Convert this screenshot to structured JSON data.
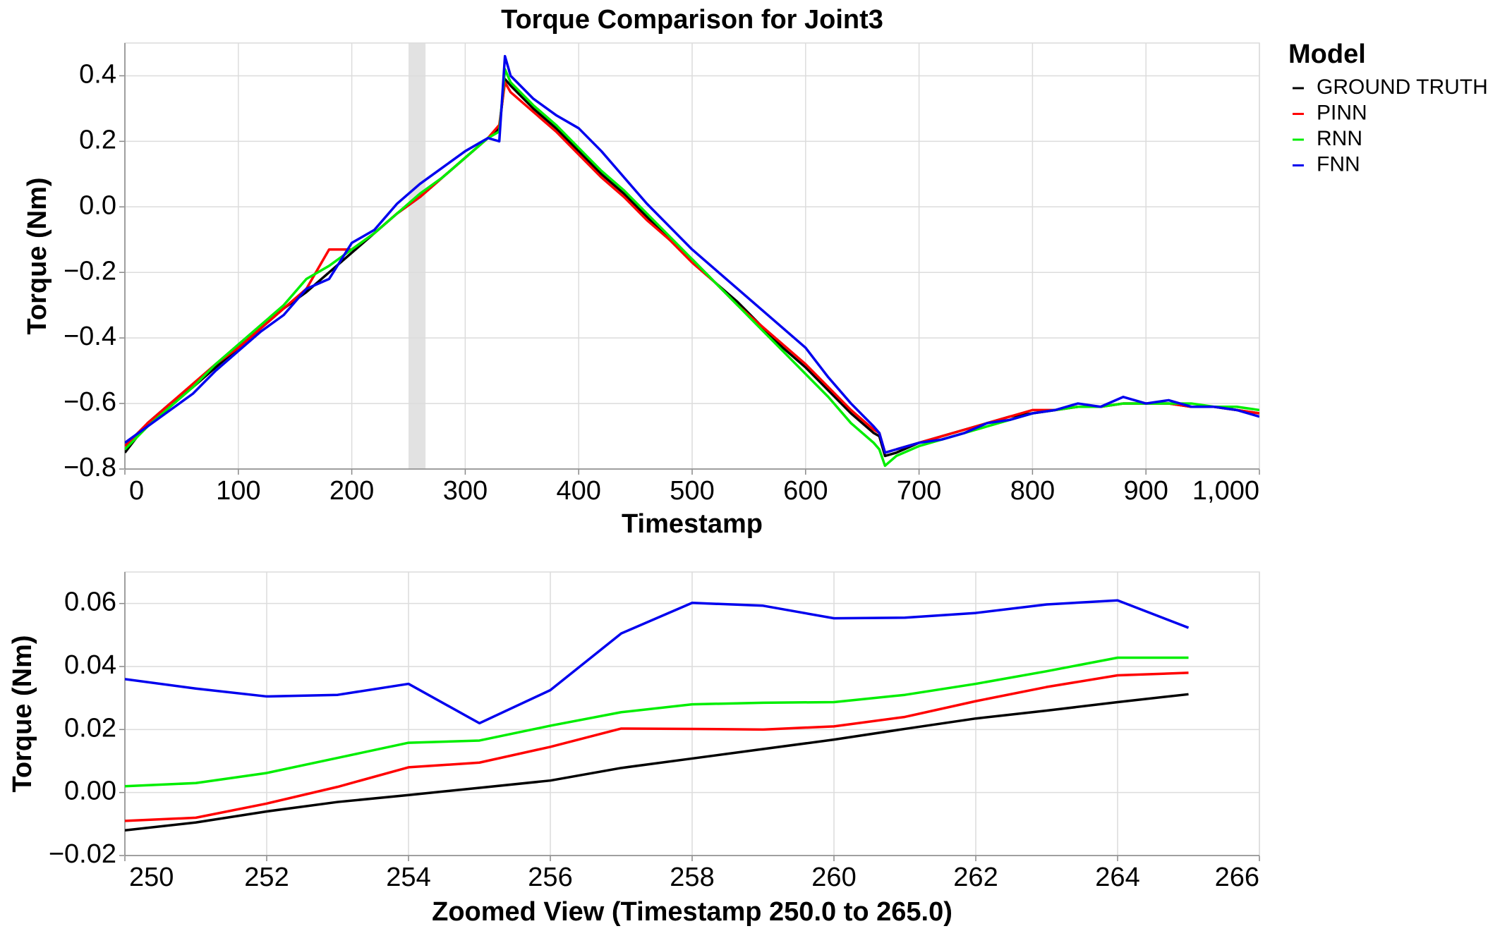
{
  "chart_data": [
    {
      "type": "line",
      "title": "Torque Comparison for Joint3",
      "xlabel": "Timestamp",
      "ylabel": "Torque (Nm)",
      "legend_title": "Model",
      "legend": "right",
      "grid": true,
      "highlight_range": [
        250,
        265
      ],
      "x": [
        0,
        20,
        40,
        60,
        80,
        100,
        120,
        140,
        160,
        180,
        200,
        220,
        240,
        260,
        280,
        300,
        320,
        330,
        335,
        340,
        360,
        380,
        400,
        420,
        440,
        460,
        480,
        500,
        520,
        540,
        560,
        580,
        600,
        620,
        640,
        660,
        665,
        670,
        680,
        700,
        720,
        740,
        760,
        780,
        800,
        820,
        840,
        860,
        880,
        900,
        920,
        940,
        960,
        980,
        1000
      ],
      "series": [
        {
          "name": "GROUND TRUTH",
          "color": "#000000",
          "values": [
            -0.75,
            -0.66,
            -0.6,
            -0.55,
            -0.49,
            -0.43,
            -0.37,
            -0.31,
            -0.26,
            -0.2,
            -0.14,
            -0.08,
            -0.02,
            0.03,
            0.09,
            0.15,
            0.21,
            0.24,
            0.39,
            0.37,
            0.3,
            0.24,
            0.17,
            0.1,
            0.04,
            -0.03,
            -0.1,
            -0.16,
            -0.23,
            -0.29,
            -0.36,
            -0.43,
            -0.49,
            -0.56,
            -0.63,
            -0.69,
            -0.7,
            -0.76,
            -0.75,
            -0.72,
            -0.7,
            -0.68,
            -0.66,
            -0.64,
            -0.63,
            -0.62,
            -0.61,
            -0.61,
            -0.6,
            -0.6,
            -0.6,
            -0.61,
            -0.61,
            -0.62,
            -0.63
          ]
        },
        {
          "name": "PINN",
          "color": "#ff0000",
          "values": [
            -0.73,
            -0.66,
            -0.6,
            -0.54,
            -0.48,
            -0.43,
            -0.37,
            -0.31,
            -0.25,
            -0.13,
            -0.13,
            -0.08,
            -0.02,
            0.03,
            0.09,
            0.15,
            0.21,
            0.25,
            0.38,
            0.35,
            0.29,
            0.23,
            0.16,
            0.09,
            0.03,
            -0.04,
            -0.1,
            -0.17,
            -0.23,
            -0.3,
            -0.36,
            -0.42,
            -0.48,
            -0.55,
            -0.62,
            -0.68,
            -0.69,
            -0.75,
            -0.74,
            -0.72,
            -0.7,
            -0.68,
            -0.66,
            -0.64,
            -0.62,
            -0.62,
            -0.61,
            -0.61,
            -0.6,
            -0.6,
            -0.6,
            -0.61,
            -0.61,
            -0.62,
            -0.63
          ]
        },
        {
          "name": "RNN",
          "color": "#00ee00",
          "values": [
            -0.74,
            -0.67,
            -0.61,
            -0.55,
            -0.48,
            -0.42,
            -0.36,
            -0.3,
            -0.22,
            -0.18,
            -0.13,
            -0.08,
            -0.02,
            0.04,
            0.09,
            0.15,
            0.21,
            0.23,
            0.42,
            0.38,
            0.31,
            0.25,
            0.18,
            0.11,
            0.05,
            -0.02,
            -0.09,
            -0.16,
            -0.23,
            -0.3,
            -0.37,
            -0.44,
            -0.51,
            -0.58,
            -0.66,
            -0.72,
            -0.74,
            -0.79,
            -0.76,
            -0.73,
            -0.71,
            -0.69,
            -0.67,
            -0.65,
            -0.63,
            -0.62,
            -0.61,
            -0.61,
            -0.6,
            -0.6,
            -0.6,
            -0.6,
            -0.61,
            -0.61,
            -0.62
          ]
        },
        {
          "name": "FNN",
          "color": "#0000ee",
          "values": [
            -0.72,
            -0.67,
            -0.62,
            -0.57,
            -0.5,
            -0.44,
            -0.38,
            -0.33,
            -0.25,
            -0.22,
            -0.11,
            -0.07,
            0.01,
            0.07,
            0.12,
            0.17,
            0.21,
            0.2,
            0.46,
            0.4,
            0.33,
            0.28,
            0.24,
            0.17,
            0.09,
            0.01,
            -0.06,
            -0.13,
            -0.19,
            -0.25,
            -0.31,
            -0.37,
            -0.43,
            -0.52,
            -0.6,
            -0.67,
            -0.69,
            -0.75,
            -0.74,
            -0.72,
            -0.71,
            -0.69,
            -0.66,
            -0.65,
            -0.63,
            -0.62,
            -0.6,
            -0.61,
            -0.58,
            -0.6,
            -0.59,
            -0.61,
            -0.61,
            -0.62,
            -0.64
          ]
        }
      ],
      "xlim": [
        0,
        1000
      ],
      "xticks": [
        0,
        100,
        200,
        300,
        400,
        500,
        600,
        700,
        800,
        900,
        {
          "value": 1000,
          "label": "1,000"
        }
      ],
      "ylim": [
        -0.8,
        0.5
      ],
      "yticks": [
        {
          "value": -0.8,
          "label": "−0.8"
        },
        {
          "value": -0.6,
          "label": "−0.6"
        },
        {
          "value": -0.4,
          "label": "−0.4"
        },
        {
          "value": -0.2,
          "label": "−0.2"
        },
        {
          "value": 0,
          "label": "0.0"
        },
        0.2,
        0.4
      ]
    },
    {
      "type": "line",
      "xlabel": "Zoomed View (Timestamp 250.0 to 265.0)",
      "ylabel": "Torque (Nm)",
      "grid": true,
      "x": [
        250,
        251,
        252,
        253,
        254,
        255,
        256,
        257,
        258,
        259,
        260,
        261,
        262,
        263,
        264,
        265
      ],
      "series": [
        {
          "name": "GROUND TRUTH",
          "color": "#000000",
          "values": [
            -0.012,
            -0.0095,
            -0.006,
            -0.003,
            -0.0008,
            0.0015,
            0.0038,
            0.0078,
            0.0108,
            0.0138,
            0.0168,
            0.0202,
            0.0235,
            0.026,
            0.0287,
            0.0312
          ]
        },
        {
          "name": "PINN",
          "color": "#ff0000",
          "values": [
            -0.009,
            -0.008,
            -0.0035,
            0.0018,
            0.008,
            0.0095,
            0.0145,
            0.0203,
            0.0202,
            0.02,
            0.021,
            0.024,
            0.029,
            0.0335,
            0.0372,
            0.038
          ]
        },
        {
          "name": "RNN",
          "color": "#00ee00",
          "values": [
            0.002,
            0.003,
            0.0062,
            0.011,
            0.0158,
            0.0165,
            0.0212,
            0.0255,
            0.028,
            0.0285,
            0.0287,
            0.031,
            0.0345,
            0.0385,
            0.0428,
            0.0428
          ]
        },
        {
          "name": "FNN",
          "color": "#0000ee",
          "values": [
            0.036,
            0.033,
            0.0305,
            0.031,
            0.0345,
            0.022,
            0.0325,
            0.0505,
            0.0602,
            0.0593,
            0.0553,
            0.0555,
            0.057,
            0.0597,
            0.061,
            0.0523
          ]
        }
      ],
      "xlim": [
        250,
        266
      ],
      "xticks": [
        250,
        252,
        254,
        256,
        258,
        260,
        262,
        264,
        266
      ],
      "ylim": [
        -0.02,
        0.07
      ],
      "yticks": [
        {
          "value": -0.02,
          "label": "−0.02"
        },
        {
          "value": 0,
          "label": "0.00"
        },
        {
          "value": 0.02,
          "label": "0.02"
        },
        {
          "value": 0.04,
          "label": "0.04"
        },
        {
          "value": 0.06,
          "label": "0.06"
        }
      ]
    }
  ]
}
